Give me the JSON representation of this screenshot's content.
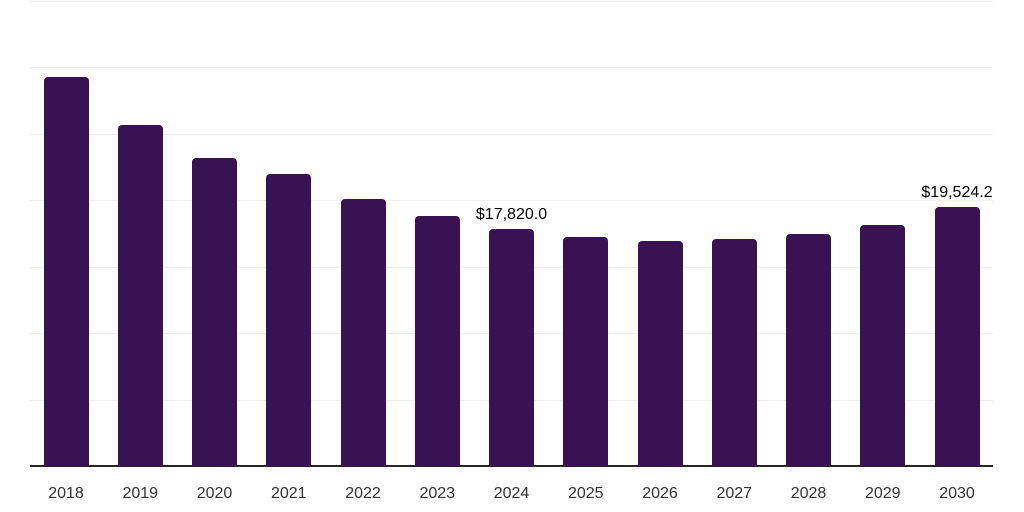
{
  "chart_data": {
    "type": "bar",
    "title": "",
    "xlabel": "",
    "ylabel": "",
    "categories": [
      "2018",
      "2019",
      "2020",
      "2021",
      "2022",
      "2023",
      "2024",
      "2025",
      "2026",
      "2027",
      "2028",
      "2029",
      "2030"
    ],
    "values": [
      29250,
      25650,
      23150,
      21950,
      20130,
      18850,
      17820.0,
      17270,
      16970,
      17120,
      17490,
      18170,
      19524.2
    ],
    "data_labels": [
      {
        "category": "2024",
        "text": "$17,820.0"
      },
      {
        "category": "2030",
        "text": "$19,524.2"
      }
    ],
    "ylim": [
      0,
      35000
    ],
    "gridline_values": [
      5000,
      10000,
      15000,
      20000,
      25000,
      30000,
      35000
    ],
    "grid": "horizontal, light gray",
    "legend": "none",
    "colors": {
      "bar": "#381252",
      "axis": "#262626",
      "gridline": "#f0f0f0",
      "x_label": "#333333",
      "data_label": "#000000"
    }
  }
}
